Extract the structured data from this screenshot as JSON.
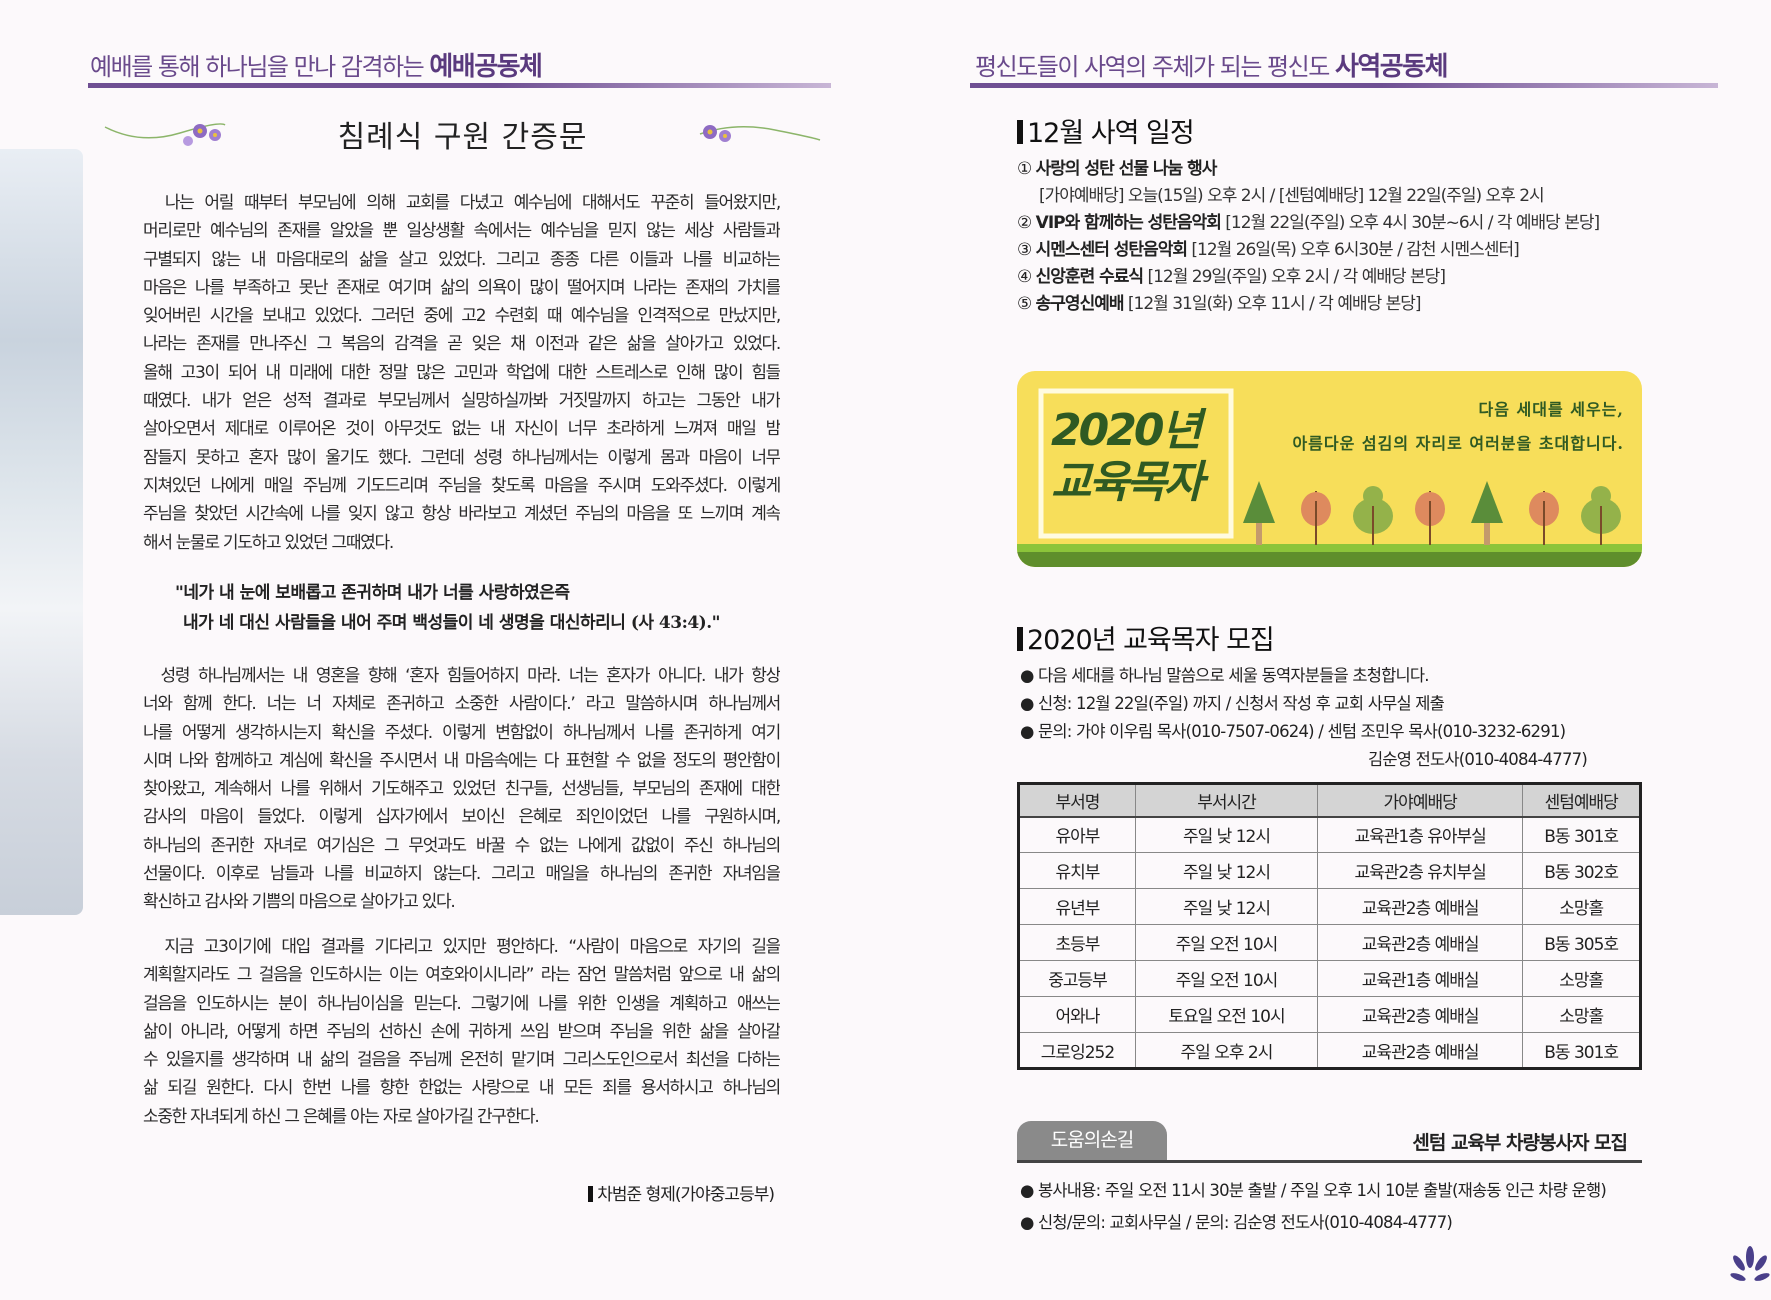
{
  "left": {
    "section_header_prefix": "예배를 통해 하나님을 만나 감격하는",
    "section_header_emph": "예배공동체",
    "title": "침례식 구원 간증문",
    "paragraph1": [
      "  나는 어릴 때부터 부모님에 의해 교회를 다녔고 예수님에 대해서도 꾸준히 들어왔지만,",
      "머리로만 예수님의 존재를 알았을 뿐 일상생활 속에서는 예수님을 믿지 않는 세상 사람들과",
      "구별되지 않는 내 마음대로의 삶을 살고 있었다. 그리고 종종 다른 이들과 나를 비교하는",
      "마음은 나를 부족하고 못난 존재로 여기며 삶의 의욕이 많이 떨어지며 나라는 존재의 가치를",
      "잊어버린 시간을 보내고 있었다. 그러던 중에 고2 수련회 때 예수님을 인격적으로 만났지만,",
      "나라는 존재를 만나주신 그 복음의 감격을 곧 잊은 채 이전과 같은 삶을 살아가고 있었다.",
      "올해 고3이 되어 내 미래에 대한 정말 많은 고민과 학업에 대한 스트레스로 인해 많이 힘들",
      "때였다. 내가 얻은 성적 결과로 부모님께서 실망하실까봐 거짓말까지 하고는 그동안 내가",
      "살아오면서 제대로 이루어온 것이 아무것도 없는 내 자신이 너무 초라하게 느껴져 매일 밤",
      "잠들지 못하고 혼자 많이 울기도 했다. 그런데 성령 하나님께서는 이렇게 몸과 마음이 너무",
      "지쳐있던 나에게 매일 주님께 기도드리며 주님을 찾도록 마음을 주시며 도와주셨다. 이렇게",
      "주님을 찾았던 시간속에 나를 잊지 않고 항상 바라보고 계셨던 주님의 마음을 또 느끼며 계속",
      "해서 눈물로 기도하고 있었던 그때였다."
    ],
    "quote": [
      "\"네가 내 눈에 보배롭고 존귀하며 내가 너를 사랑하였은즉",
      "내가 네 대신 사람들을 내어 주며 백성들이 네 생명을 대신하리니 (사 43:4).\""
    ],
    "paragraph2": [
      "  성령 하나님께서는 내 영혼을 향해 ‘혼자 힘들어하지 마라. 너는 혼자가 아니다. 내가 항상",
      "너와 함께 한다. 너는 너 자체로 존귀하고 소중한 사람이다.’ 라고 말씀하시며 하나님께서",
      "나를 어떻게 생각하시는지 확신을 주셨다. 이렇게 변함없이 하나님께서 나를 존귀하게 여기",
      "시며 나와 함께하고 계심에 확신을 주시면서 내 마음속에는 다 표현할 수 없을 정도의 평안함이",
      "찾아왔고, 계속해서 나를 위해서 기도해주고 있었던 친구들, 선생님들, 부모님의 존재에 대한",
      "감사의 마음이 들었다. 이렇게 십자가에서 보이신 은혜로 죄인이었던 나를 구원하시며,",
      "하나님의 존귀한 자녀로 여기심은 그 무엇과도 바꿀 수 없는 나에게 값없이 주신 하나님의",
      "선물이다. 이후로 남들과 나를 비교하지 않는다. 그리고 매일을 하나님의 존귀한 자녀임을",
      "확신하고 감사와 기쁨의 마음으로 살아가고 있다."
    ],
    "paragraph3": [
      "  지금 고3이기에 대입 결과를 기다리고 있지만 평안하다. “사람이 마음으로 자기의 길을",
      "계획할지라도 그 걸음을 인도하시는 이는 여호와이시니라” 라는 잠언 말씀처럼 앞으로 내 삶의",
      "걸음을 인도하시는 분이 하나님이심을 믿는다. 그렇기에 나를 위한 인생을 계획하고 애쓰는",
      "삶이 아니라, 어떻게 하면 주님의 선하신 손에 귀하게 쓰임 받으며 주님을 위한 삶을 살아갈",
      "수 있을지를 생각하며 내 삶의 걸음을 주님께 온전히 맡기며 그리스도인으로서 최선을 다하는",
      "삶 되길 원한다. 다시 한번 나를 향한 한없는 사랑으로 내 모든 죄를 용서하시고 하나님의",
      "소중한 자녀되게 하신 그 은혜를 아는 자로 살아가길 간구한다."
    ],
    "signature": "차범준 형제(가야중고등부)"
  },
  "right": {
    "section_header_prefix": "평신도들이 사역의 주체가 되는 평신도",
    "section_header_emph": "사역공동체",
    "schedule_title": "12월 사역 일정",
    "schedule": [
      {
        "num": "①",
        "name": "사랑의 성탄 선물 나눔 행사",
        "detail": ""
      },
      {
        "num": "",
        "name": "",
        "detail": "[가야예배당] 오늘(15일) 오후 2시 / [센텀예배당] 12월 22일(주일) 오후 2시"
      },
      {
        "num": "②",
        "name": "VIP와 함께하는 성탄음악회",
        "detail": "[12월 22일(주일) 오후 4시 30분~6시 / 각 예배당 본당]"
      },
      {
        "num": "③",
        "name": "시멘스센터 성탄음악회",
        "detail": "[12월 26일(목) 오후 6시30분 / 감천 시멘스센터]"
      },
      {
        "num": "④",
        "name": "신앙훈련 수료식",
        "detail": "[12월 29일(주일) 오후 2시 / 각 예배당 본당]"
      },
      {
        "num": "⑤",
        "name": "송구영신예배",
        "detail": "[12월 31일(화) 오후 11시 / 각 예배당 본당]"
      }
    ],
    "banner": {
      "title_line1": "2020년",
      "title_line2": "교육목자",
      "slogan_line1": "다음 세대를 세우는,",
      "slogan_line2": "아름다운 섬김의 자리로 여러분을 초대합니다.",
      "bg_color": "#f7de5a",
      "title_color": "#2f5a23"
    },
    "recruit_title": "2020년 교육목자 모집",
    "recruit_bullets": [
      "다음 세대를 하나님 말씀으로 세울 동역자분들을 초청합니다.",
      "신청: 12월 22일(주일) 까지 / 신청서 작성 후 교회 사무실 제출",
      "문의: 가야 이우림 목사(010-7507-0624) / 센텀 조민우 목사(010-3232-6291)"
    ],
    "recruit_contact_extra": "김순영 전도사(010-4084-4777)",
    "table": {
      "headers": [
        "부서명",
        "부서시간",
        "가야예배당",
        "센텀예배당"
      ],
      "rows": [
        [
          "유아부",
          "주일 낮 12시",
          "교육관1층 유아부실",
          "B동 301호"
        ],
        [
          "유치부",
          "주일 낮 12시",
          "교육관2층 유치부실",
          "B동 302호"
        ],
        [
          "유년부",
          "주일 낮 12시",
          "교육관2층 예배실",
          "소망홀"
        ],
        [
          "초등부",
          "주일 오전 10시",
          "교육관2층 예배실",
          "B동 305호"
        ],
        [
          "중고등부",
          "주일 오전 10시",
          "교육관1층 예배실",
          "소망홀"
        ],
        [
          "어와나",
          "토요일 오전 10시",
          "교육관2층 예배실",
          "소망홀"
        ],
        [
          "그로잉252",
          "주일 오후 2시",
          "교육관2층 예배실",
          "B동 301호"
        ]
      ]
    },
    "help": {
      "tab_label": "도움의손길",
      "title": "센텀 교육부 차량봉사자 모집",
      "bullets": [
        "봉사내용: 주일 오전 11시 30분 출발 / 주일 오후 1시 10분 출발(재송동 인근 차량 운행)",
        "신청/문의: 교회사무실 / 문의: 김순영 전도사(010-4084-4777)"
      ]
    }
  },
  "colors": {
    "accent_purple": "#6f4f93",
    "tab_gray": "#8a8a8a"
  }
}
